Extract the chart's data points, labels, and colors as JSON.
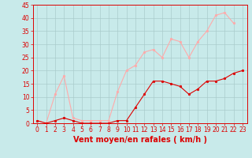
{
  "x_labels": [
    "0",
    "1",
    "2",
    "3",
    "4",
    "5",
    "6",
    "7",
    "8",
    "9",
    "10",
    "11",
    "12",
    "13",
    "14",
    "15",
    "16",
    "17",
    "18",
    "19",
    "20",
    "21",
    "22",
    "23"
  ],
  "x_values": [
    0,
    1,
    2,
    3,
    4,
    5,
    6,
    7,
    8,
    9,
    10,
    11,
    12,
    13,
    14,
    15,
    16,
    17,
    18,
    19,
    20,
    21,
    22,
    23
  ],
  "rafales": [
    1,
    0,
    11,
    18,
    2,
    1,
    1,
    1,
    1,
    12,
    20,
    22,
    27,
    28,
    25,
    32,
    31,
    25,
    31,
    35,
    41,
    42,
    38,
    null
  ],
  "moyen": [
    1,
    0,
    1,
    2,
    1,
    0,
    0,
    0,
    0,
    1,
    1,
    6,
    11,
    16,
    16,
    15,
    14,
    11,
    13,
    16,
    16,
    17,
    19,
    20
  ],
  "color_rafales": "#ffaaaa",
  "color_moyen": "#dd0000",
  "bg_color": "#c8eaea",
  "grid_color": "#aacccc",
  "xlabel": "Vent moyen/en rafales ( km/h )",
  "ylim": [
    0,
    45
  ],
  "yticks": [
    0,
    5,
    10,
    15,
    20,
    25,
    30,
    35,
    40,
    45
  ],
  "xlim": [
    -0.5,
    23.5
  ],
  "xlabel_color": "#dd0000",
  "xlabel_fontsize": 7,
  "tick_fontsize": 5.5
}
